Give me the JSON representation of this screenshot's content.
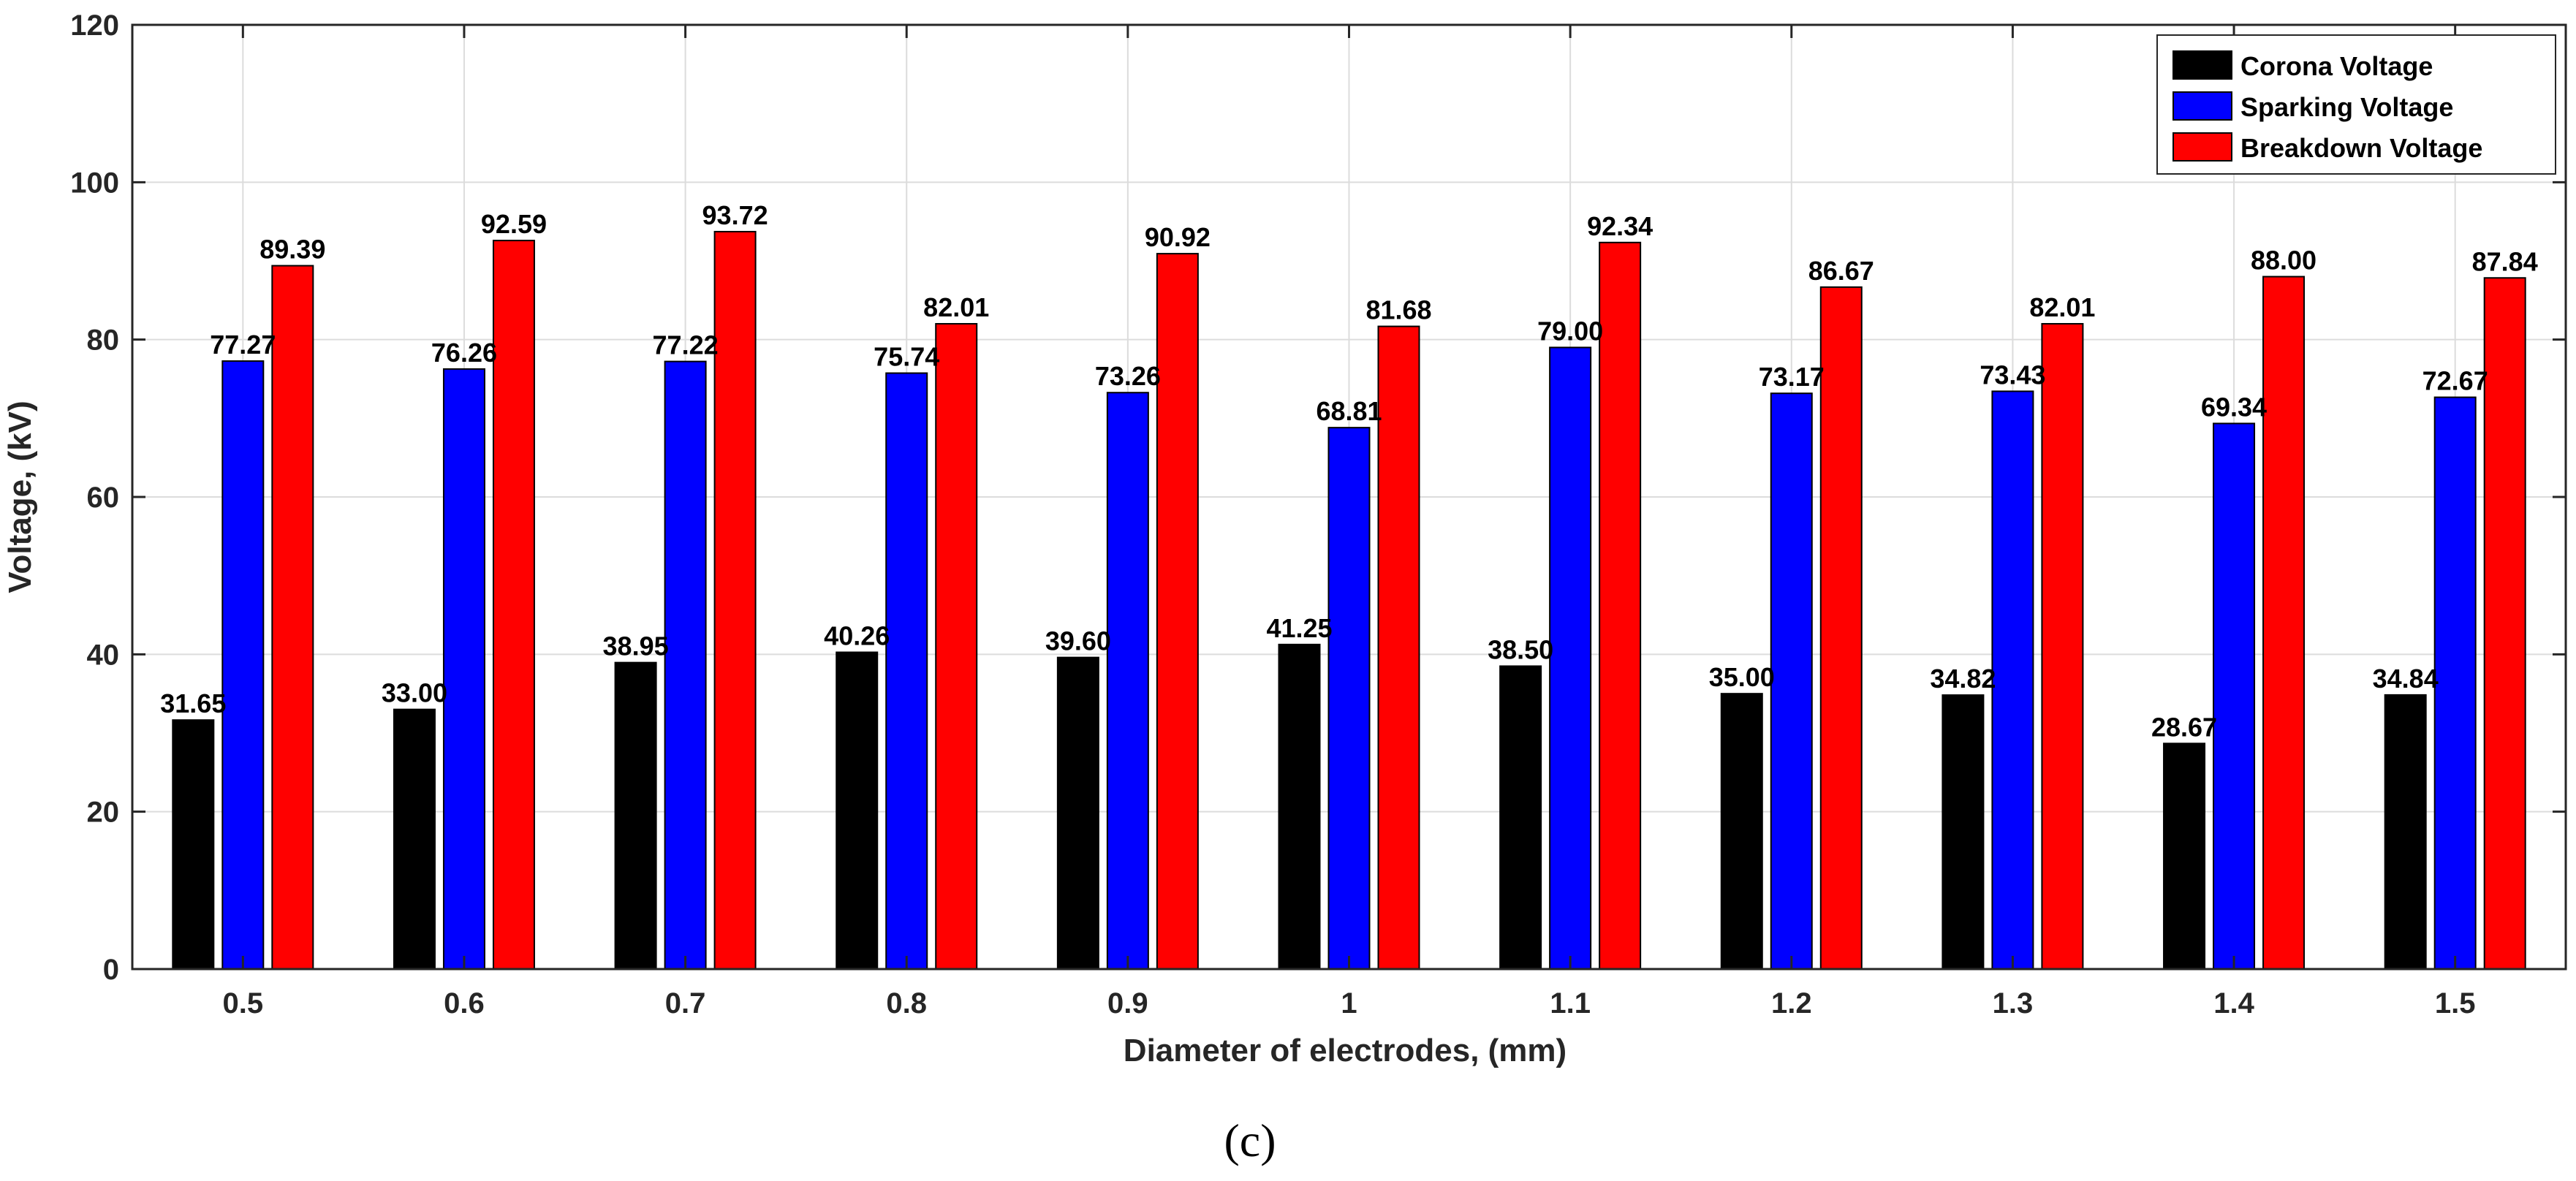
{
  "chart_data": {
    "type": "bar",
    "title": "",
    "xlabel": "Diameter of electrodes, (mm)",
    "ylabel": "Voltage, (kV)",
    "ylim": [
      0,
      120
    ],
    "yticks": [
      0,
      20,
      40,
      60,
      80,
      100,
      120
    ],
    "grid": true,
    "legend_position": "top-right",
    "categories": [
      "0.5",
      "0.6",
      "0.7",
      "0.8",
      "0.9",
      "1",
      "1.1",
      "1.2",
      "1.3",
      "1.4",
      "1.5"
    ],
    "series": [
      {
        "name": "Corona Voltage",
        "color": "#000000",
        "values": [
          31.65,
          33.0,
          38.95,
          40.26,
          39.6,
          41.25,
          38.5,
          35.0,
          34.82,
          28.67,
          34.84
        ],
        "labels": [
          "31.65",
          "33.00",
          "38.95",
          "40.26",
          "39.60",
          "41.25",
          "38.50",
          "35.00",
          "34.82",
          "28.67",
          "34.84"
        ]
      },
      {
        "name": "Sparking Voltage",
        "color": "#0000ff",
        "values": [
          77.27,
          76.26,
          77.22,
          75.74,
          73.26,
          68.81,
          79.0,
          73.17,
          73.43,
          69.34,
          72.67
        ],
        "labels": [
          "77.27",
          "76.26",
          "77.22",
          "75.74",
          "73.26",
          "68.81",
          "79.00",
          "73.17",
          "73.43",
          "69.34",
          "72.67"
        ]
      },
      {
        "name": "Breakdown Voltage",
        "color": "#ff0000",
        "values": [
          89.39,
          92.59,
          93.72,
          82.01,
          90.92,
          81.68,
          92.34,
          86.67,
          82.01,
          88.0,
          87.84
        ],
        "labels": [
          "89.39",
          "92.59",
          "93.72",
          "82.01",
          "90.92",
          "81.68",
          "92.34",
          "86.67",
          "82.01",
          "88.00",
          "87.84"
        ]
      }
    ]
  },
  "caption": "(c)"
}
